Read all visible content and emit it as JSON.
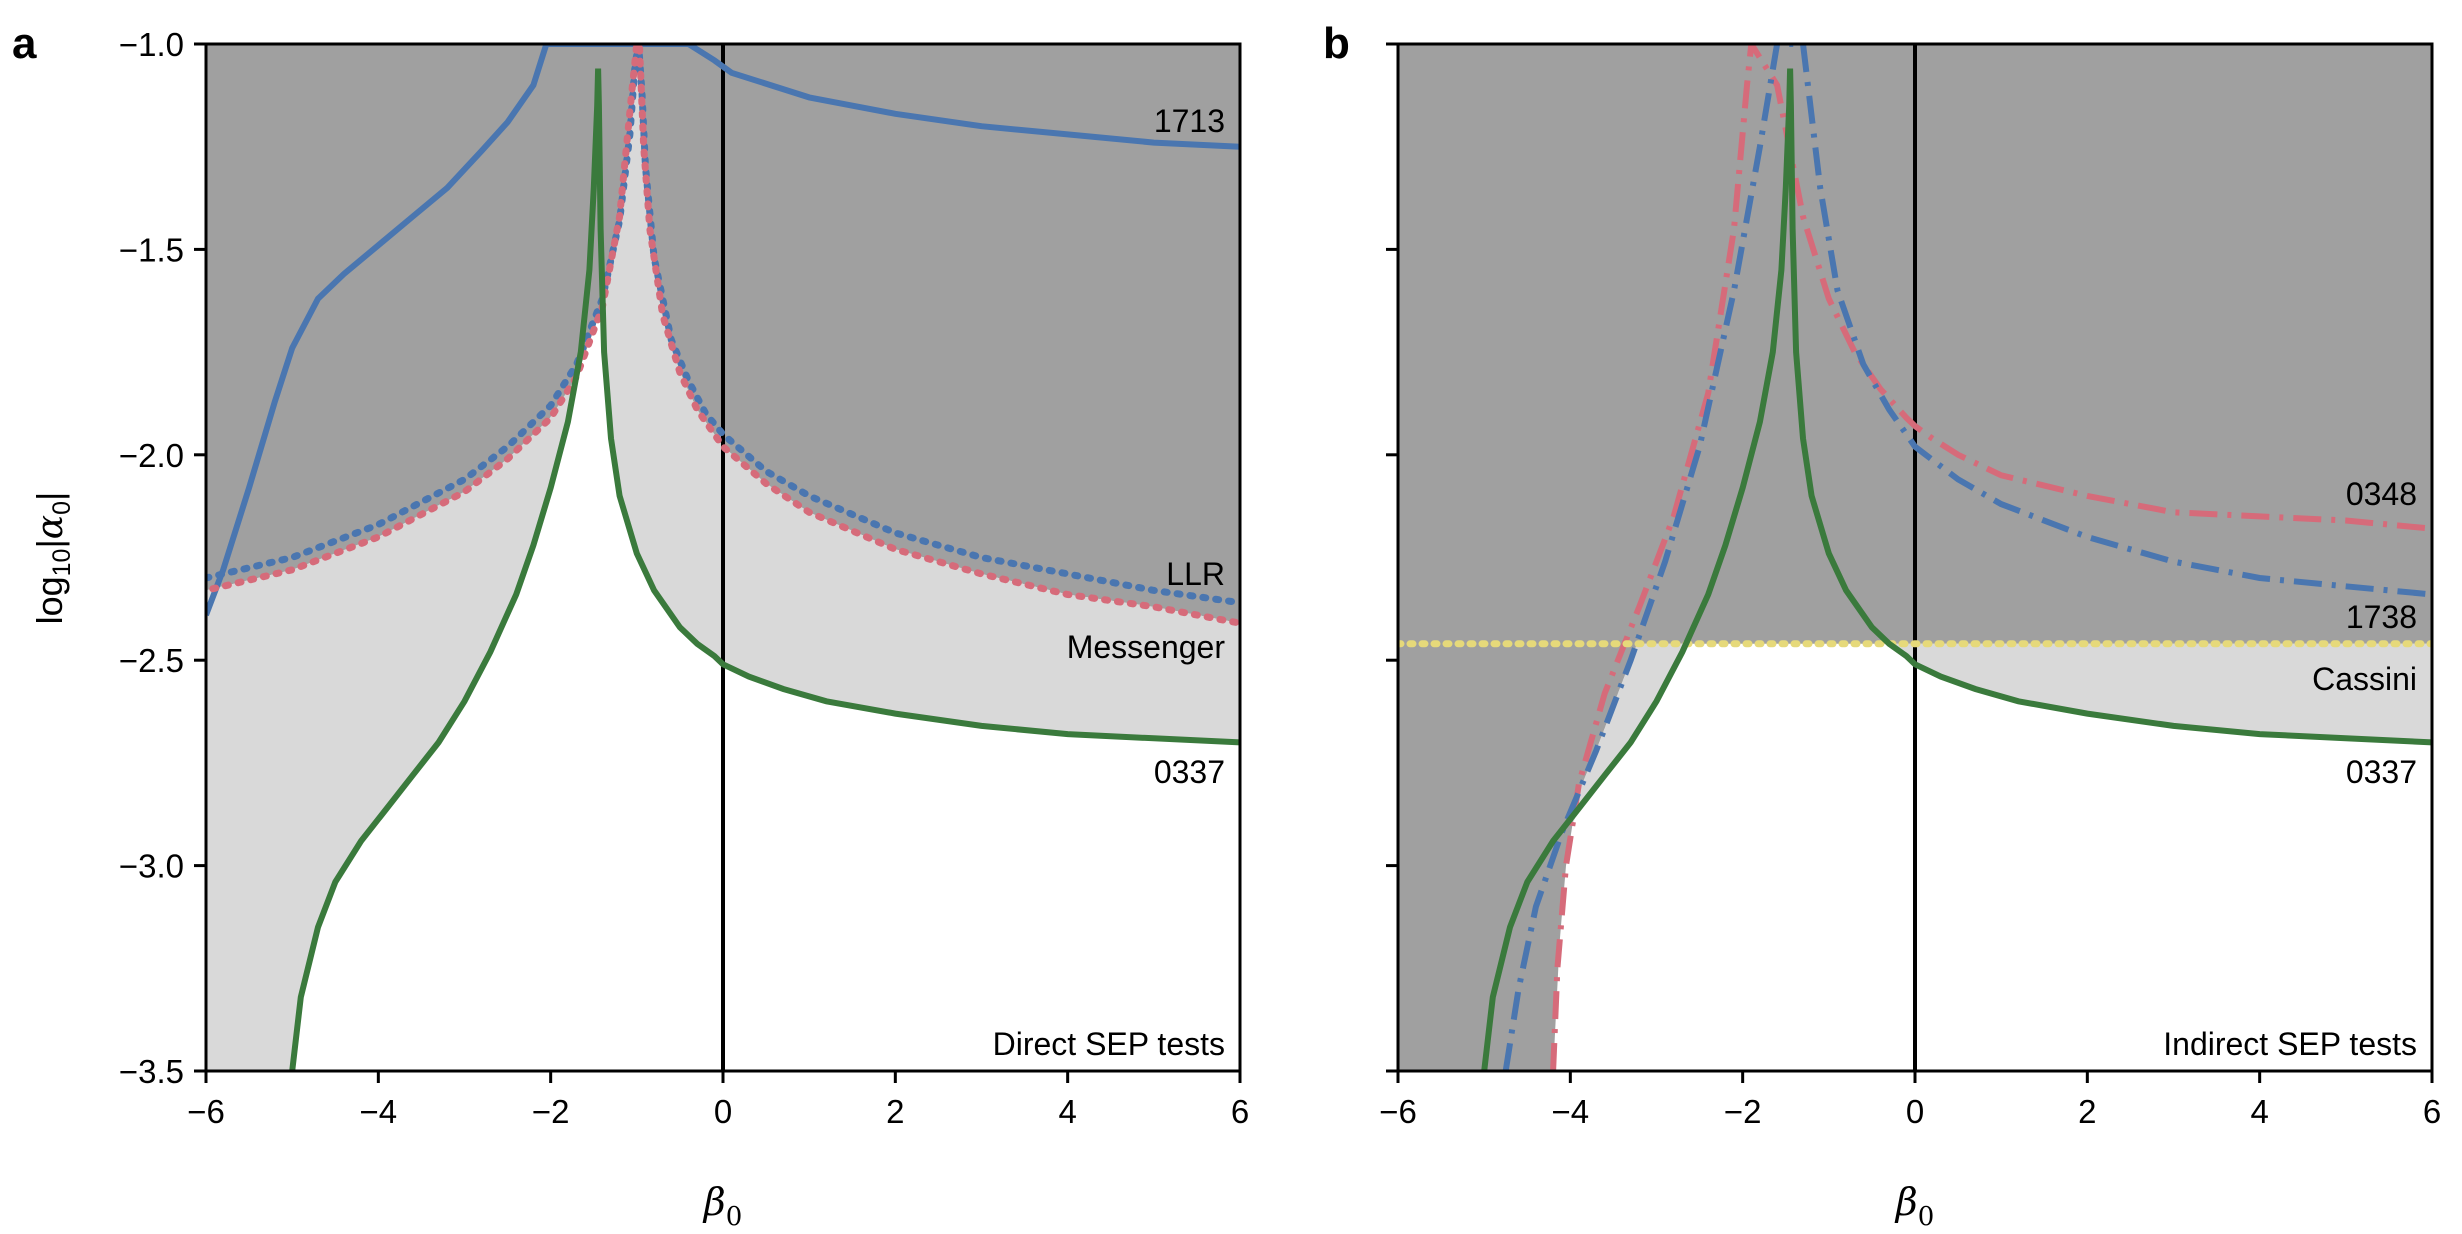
{
  "chart_data": [
    {
      "panel": "a",
      "type": "line",
      "title": "Direct SEP tests",
      "xlabel": "β0",
      "ylabel": "log10|α0|",
      "xlim": [
        -6,
        6
      ],
      "ylim": [
        -3.5,
        -1.0
      ],
      "xticks": [
        -6,
        -4,
        -2,
        0,
        2,
        4,
        6
      ],
      "yticks": [
        -1.0,
        -1.5,
        -2.0,
        -2.5,
        -3.0,
        -3.5
      ],
      "xtick_labels": [
        "−6",
        "−4",
        "−2",
        "0",
        "2",
        "4",
        "6"
      ],
      "ytick_labels": [
        "−1.0",
        "−1.5",
        "−2.0",
        "−2.5",
        "−3.0",
        "−3.5"
      ],
      "regions": [
        {
          "name": "excluded",
          "color": "#a0a0a0",
          "description": "dark grey above combined bound"
        },
        {
          "name": "allowed-by-solar-system",
          "color": "#d9d9d9",
          "description": "light grey between LLR/Messenger and 0337"
        }
      ],
      "series": [
        {
          "name": "1713",
          "style": "solid",
          "color": "#4a76b0",
          "x": [
            -6.0,
            -5.8,
            -5.5,
            -5.2,
            -5.0,
            -4.7,
            -4.4,
            -4.0,
            -3.6,
            -3.2,
            -2.8,
            -2.5,
            -2.2,
            -2.05,
            -1.6,
            -1.2,
            -0.8,
            -0.4,
            -0.1,
            0.1,
            1,
            2,
            3,
            4,
            5,
            6
          ],
          "y": [
            -2.39,
            -2.28,
            -2.08,
            -1.87,
            -1.74,
            -1.62,
            -1.56,
            -1.49,
            -1.42,
            -1.35,
            -1.26,
            -1.19,
            -1.1,
            -1.0,
            -1.0,
            -1.0,
            -1.0,
            -1.0,
            -1.04,
            -1.07,
            -1.13,
            -1.17,
            -1.2,
            -1.22,
            -1.24,
            -1.25
          ]
        },
        {
          "name": "LLR",
          "style": "dotted",
          "color": "#4a76b0",
          "x": [
            -6.0,
            -5.0,
            -4.0,
            -3.0,
            -2.5,
            -2.0,
            -1.7,
            -1.4,
            -1.2,
            -1.08,
            -1.02,
            -0.98,
            -0.94,
            -0.9,
            -0.8,
            -0.6,
            -0.4,
            -0.2,
            0.0,
            0.5,
            1,
            2,
            3,
            4,
            5,
            6
          ],
          "y": [
            -2.3,
            -2.25,
            -2.17,
            -2.06,
            -1.98,
            -1.88,
            -1.78,
            -1.62,
            -1.43,
            -1.22,
            -1.05,
            -1.0,
            -1.12,
            -1.3,
            -1.52,
            -1.72,
            -1.82,
            -1.9,
            -1.95,
            -2.04,
            -2.1,
            -2.19,
            -2.25,
            -2.29,
            -2.33,
            -2.36
          ]
        },
        {
          "name": "Messenger",
          "style": "dotted",
          "color": "#d66b7a",
          "x": [
            -6.0,
            -5.0,
            -4.0,
            -3.0,
            -2.5,
            -2.0,
            -1.7,
            -1.4,
            -1.2,
            -1.05,
            -1.0,
            -0.97,
            -0.92,
            -0.85,
            -0.7,
            -0.5,
            -0.3,
            -0.1,
            0.0,
            0.5,
            1,
            2,
            3,
            4,
            5,
            6
          ],
          "y": [
            -2.33,
            -2.28,
            -2.2,
            -2.09,
            -2.01,
            -1.91,
            -1.81,
            -1.64,
            -1.42,
            -1.1,
            -1.0,
            -1.0,
            -1.25,
            -1.45,
            -1.66,
            -1.8,
            -1.89,
            -1.95,
            -1.98,
            -2.07,
            -2.14,
            -2.23,
            -2.29,
            -2.34,
            -2.37,
            -2.41
          ]
        },
        {
          "name": "0337",
          "style": "solid",
          "color": "#3a7a3c",
          "x": [
            -5.0,
            -4.9,
            -4.7,
            -4.5,
            -4.2,
            -3.9,
            -3.6,
            -3.3,
            -3.0,
            -2.7,
            -2.4,
            -2.2,
            -2.0,
            -1.8,
            -1.65,
            -1.55,
            -1.5,
            -1.46,
            -1.45,
            -1.44,
            -1.42,
            -1.38,
            -1.3,
            -1.2,
            -1.0,
            -0.8,
            -0.5,
            -0.3,
            -0.1,
            0.0,
            0.3,
            0.7,
            1.2,
            2,
            3,
            4,
            5,
            6
          ],
          "y": [
            -3.5,
            -3.32,
            -3.15,
            -3.04,
            -2.94,
            -2.86,
            -2.78,
            -2.7,
            -2.6,
            -2.48,
            -2.34,
            -2.22,
            -2.08,
            -1.92,
            -1.75,
            -1.55,
            -1.35,
            -1.15,
            -1.06,
            -1.15,
            -1.45,
            -1.75,
            -1.96,
            -2.1,
            -2.24,
            -2.33,
            -2.42,
            -2.46,
            -2.49,
            -2.51,
            -2.54,
            -2.57,
            -2.6,
            -2.63,
            -2.66,
            -2.68,
            -2.69,
            -2.7
          ]
        }
      ],
      "annotations": [
        {
          "text": "1713",
          "x": 5.9,
          "y": -1.19
        },
        {
          "text": "LLR",
          "x": 5.9,
          "y": -2.32
        },
        {
          "text": "Messenger",
          "x": 5.9,
          "y": -2.5
        },
        {
          "text": "0337",
          "x": 5.9,
          "y": -2.81
        },
        {
          "text": "Direct SEP tests",
          "x": 5.9,
          "y": -3.44
        }
      ]
    },
    {
      "panel": "b",
      "type": "line",
      "title": "Indirect SEP tests",
      "xlabel": "β0",
      "ylabel": "",
      "xlim": [
        -6,
        6
      ],
      "ylim": [
        -3.5,
        -1.0
      ],
      "xticks": [
        -6,
        -4,
        -2,
        0,
        2,
        4,
        6
      ],
      "yticks": [
        -1.0,
        -1.5,
        -2.0,
        -2.5,
        -3.0,
        -3.5
      ],
      "xtick_labels": [
        "−6",
        "−4",
        "−2",
        "0",
        "2",
        "4",
        "6"
      ],
      "ytick_labels": [],
      "regions": [
        {
          "name": "excluded",
          "color": "#a0a0a0",
          "description": "dark grey outside combined bound"
        },
        {
          "name": "allowed-by-cassini",
          "color": "#d9d9d9",
          "description": "light grey between Cassini and 0337"
        }
      ],
      "series": [
        {
          "name": "0348",
          "style": "dashdot",
          "color": "#d66b7a",
          "x": [
            -4.2,
            -4.15,
            -4.05,
            -3.9,
            -3.6,
            -3.2,
            -2.8,
            -2.4,
            -2.1,
            -1.95,
            -1.9,
            -1.6,
            -1.3,
            -1.0,
            -0.7,
            -0.4,
            -0.1,
            0.0,
            0.2,
            0.5,
            1,
            2,
            3,
            4,
            5,
            6
          ],
          "y": [
            -3.5,
            -3.25,
            -3.0,
            -2.8,
            -2.58,
            -2.37,
            -2.15,
            -1.85,
            -1.45,
            -1.1,
            -1.0,
            -1.1,
            -1.42,
            -1.62,
            -1.75,
            -1.84,
            -1.91,
            -1.93,
            -1.96,
            -2.0,
            -2.05,
            -2.1,
            -2.14,
            -2.15,
            -2.16,
            -2.18
          ]
        },
        {
          "name": "1738",
          "style": "dashdot",
          "color": "#4a76b0",
          "x": [
            -4.75,
            -4.6,
            -4.4,
            -4.1,
            -3.7,
            -3.3,
            -2.9,
            -2.5,
            -2.1,
            -1.8,
            -1.6,
            -1.3,
            -1.1,
            -0.9,
            -0.6,
            -0.3,
            0.0,
            0.5,
            1,
            2,
            3,
            4,
            5,
            6
          ],
          "y": [
            -3.5,
            -3.3,
            -3.1,
            -2.92,
            -2.72,
            -2.5,
            -2.26,
            -1.98,
            -1.6,
            -1.25,
            -1.0,
            -1.0,
            -1.35,
            -1.6,
            -1.78,
            -1.89,
            -1.98,
            -2.06,
            -2.12,
            -2.2,
            -2.26,
            -2.3,
            -2.32,
            -2.34
          ]
        },
        {
          "name": "Cassini",
          "style": "dotted",
          "color": "#e6d97a",
          "x": [
            -6,
            6
          ],
          "y": [
            -2.46,
            -2.46
          ]
        },
        {
          "name": "0337",
          "style": "solid",
          "color": "#3a7a3c",
          "x": [
            -5.0,
            -4.9,
            -4.7,
            -4.5,
            -4.2,
            -3.9,
            -3.6,
            -3.3,
            -3.0,
            -2.7,
            -2.4,
            -2.2,
            -2.0,
            -1.8,
            -1.65,
            -1.55,
            -1.5,
            -1.46,
            -1.45,
            -1.44,
            -1.42,
            -1.38,
            -1.3,
            -1.2,
            -1.0,
            -0.8,
            -0.5,
            -0.3,
            -0.1,
            0.0,
            0.3,
            0.7,
            1.2,
            2,
            3,
            4,
            5,
            6
          ],
          "y": [
            -3.5,
            -3.32,
            -3.15,
            -3.04,
            -2.94,
            -2.86,
            -2.78,
            -2.7,
            -2.6,
            -2.48,
            -2.34,
            -2.22,
            -2.08,
            -1.92,
            -1.75,
            -1.55,
            -1.35,
            -1.15,
            -1.06,
            -1.15,
            -1.45,
            -1.75,
            -1.96,
            -2.1,
            -2.24,
            -2.33,
            -2.42,
            -2.46,
            -2.49,
            -2.51,
            -2.54,
            -2.57,
            -2.6,
            -2.63,
            -2.66,
            -2.68,
            -2.69,
            -2.7
          ]
        }
      ],
      "annotations": [
        {
          "text": "0348",
          "x": 5.9,
          "y": -2.12
        },
        {
          "text": "1738",
          "x": 5.9,
          "y": -2.4
        },
        {
          "text": "Cassini",
          "x": 5.9,
          "y": -2.59
        },
        {
          "text": "0337",
          "x": 5.9,
          "y": -2.81
        },
        {
          "text": "Indirect SEP tests",
          "x": 5.9,
          "y": -3.44
        }
      ]
    }
  ],
  "colors": {
    "excluded_region": "#a0a0a0",
    "intermediate_region": "#d9d9d9",
    "blue": "#4a76b0",
    "red": "#d66b7a",
    "green": "#3a7a3c",
    "yellow": "#e6d97a"
  }
}
